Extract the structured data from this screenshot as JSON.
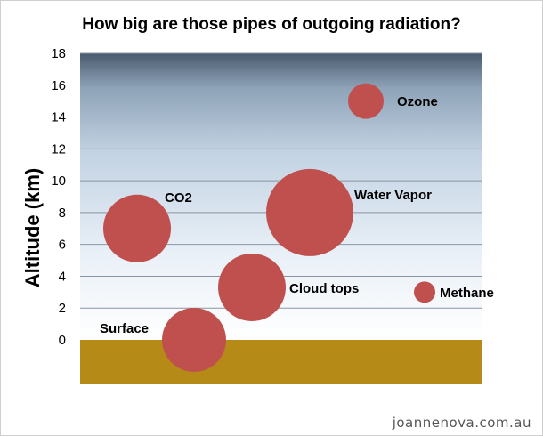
{
  "chart_data": {
    "type": "scatter",
    "title": "How big are those pipes of outgoing radiation?",
    "ylabel": "Altitude (km)",
    "xlabel": "",
    "ylim": [
      -3,
      18
    ],
    "yticks": [
      0,
      2,
      4,
      6,
      8,
      10,
      12,
      14,
      16,
      18
    ],
    "grid": true,
    "bubble_color": "#c0504d",
    "sky_color_top": "#4a5a6e",
    "sky_color_bottom": "#ffffff",
    "ground_color": "#b58a16",
    "points": [
      {
        "label": "Surface",
        "y": 0,
        "size": 1.0
      },
      {
        "label": "CO2",
        "y": 7,
        "size": 1.05
      },
      {
        "label": "Cloud tops",
        "y": 3.3,
        "size": 1.05
      },
      {
        "label": "Water Vapor",
        "y": 8,
        "size": 1.35
      },
      {
        "label": "Ozone",
        "y": 15,
        "size": 0.55
      },
      {
        "label": "Methane",
        "y": 3,
        "size": 0.32
      }
    ]
  },
  "credit": "joannenova.com.au"
}
